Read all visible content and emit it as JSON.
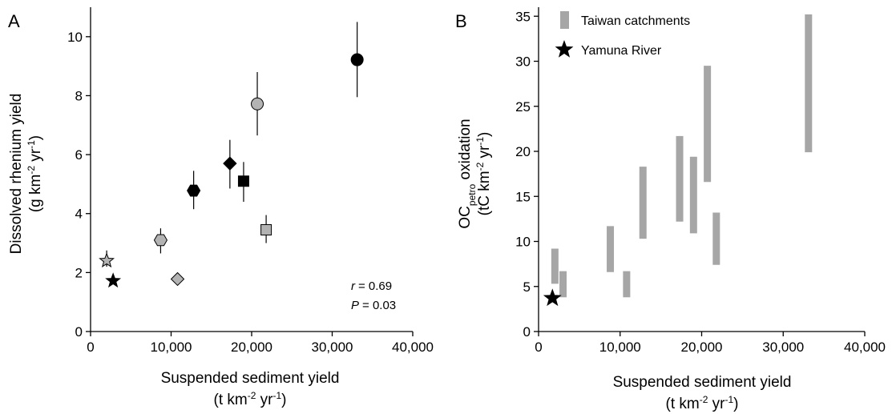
{
  "chart_data": [
    {
      "type": "scatter",
      "panel_label": "A",
      "xlabel": "Suspended sediment yield",
      "xlabel_units": {
        "pre": "(t km",
        "sup1": "-2",
        "mid": " yr",
        "sup2": "-1",
        "post": ")"
      },
      "ylabel": "Dissolved rhenium yield",
      "ylabel_units": {
        "pre": "(g km",
        "sup1": "-2",
        "mid": " yr",
        "sup2": "-1",
        "post": ")"
      },
      "xlim": [
        0,
        40000
      ],
      "ylim": [
        0,
        11
      ],
      "xticks": [
        0,
        10000,
        20000,
        30000,
        40000
      ],
      "xtick_labels": [
        "0",
        "10,000",
        "20,000",
        "30,000",
        "40,000"
      ],
      "yticks": [
        0,
        2,
        4,
        6,
        8,
        10
      ],
      "ytick_labels": [
        "0",
        "2",
        "4",
        "6",
        "8",
        "10"
      ],
      "grid": false,
      "stats": {
        "r_label": "r",
        "r_value": "= 0.69",
        "p_label": "P",
        "p_value": "= 0.03"
      },
      "points": [
        {
          "x": 2000,
          "y": 2.4,
          "err_low": 2.2,
          "err_high": 2.75,
          "marker": "star",
          "color": "#b3b3b3"
        },
        {
          "x": 2800,
          "y": 1.72,
          "err_low": 1.72,
          "err_high": 1.72,
          "marker": "star",
          "color": "#000000"
        },
        {
          "x": 8700,
          "y": 3.1,
          "err_low": 2.65,
          "err_high": 3.5,
          "marker": "hexagon",
          "color": "#b3b3b3"
        },
        {
          "x": 10800,
          "y": 1.78,
          "err_low": 1.78,
          "err_high": 1.78,
          "marker": "diamond",
          "color": "#b3b3b3"
        },
        {
          "x": 12800,
          "y": 4.78,
          "err_low": 4.15,
          "err_high": 5.45,
          "marker": "hexagon",
          "color": "#000000"
        },
        {
          "x": 17300,
          "y": 5.7,
          "err_low": 4.85,
          "err_high": 6.5,
          "marker": "diamond",
          "color": "#000000"
        },
        {
          "x": 19000,
          "y": 5.1,
          "err_low": 4.4,
          "err_high": 5.75,
          "marker": "square",
          "color": "#000000"
        },
        {
          "x": 20700,
          "y": 7.72,
          "err_low": 6.65,
          "err_high": 8.8,
          "marker": "circle",
          "color": "#b3b3b3"
        },
        {
          "x": 21800,
          "y": 3.45,
          "err_low": 3.0,
          "err_high": 3.95,
          "marker": "square",
          "color": "#b3b3b3"
        },
        {
          "x": 33100,
          "y": 9.22,
          "err_low": 7.95,
          "err_high": 10.5,
          "marker": "circle",
          "color": "#000000"
        }
      ]
    },
    {
      "type": "range-bar",
      "panel_label": "B",
      "xlabel": "Suspended sediment yield",
      "xlabel_units": {
        "pre": "(t km",
        "sup1": "-2",
        "mid": " yr",
        "sup2": "-1",
        "post": ")"
      },
      "ylabel_main": "OC",
      "ylabel_sub": "petro",
      "ylabel_rest": " oxidation",
      "ylabel_units": {
        "pre": "(tC km",
        "sup1": "-2",
        "mid": " yr",
        "sup2": "-1",
        "post": ")"
      },
      "xlim": [
        0,
        40000
      ],
      "ylim": [
        0,
        36
      ],
      "xticks": [
        0,
        10000,
        20000,
        30000,
        40000
      ],
      "xtick_labels": [
        "0",
        "10,000",
        "20,000",
        "30,000",
        "40,000"
      ],
      "yticks": [
        0,
        5,
        10,
        15,
        20,
        25,
        30,
        35
      ],
      "ytick_labels": [
        "0",
        "5",
        "10",
        "15",
        "20",
        "25",
        "30",
        "35"
      ],
      "grid": false,
      "legend": [
        {
          "label": "Taiwan catchments",
          "marker": "bar",
          "color": "#a6a6a6"
        },
        {
          "label": "Yamuna River",
          "marker": "star",
          "color": "#000000"
        }
      ],
      "legend_position": "top-left",
      "bar_color": "#a6a6a6",
      "taiwan_ranges": [
        {
          "x": 2000,
          "low": 5.3,
          "high": 9.2
        },
        {
          "x": 3000,
          "low": 3.8,
          "high": 6.7
        },
        {
          "x": 8800,
          "low": 6.6,
          "high": 11.7
        },
        {
          "x": 10800,
          "low": 3.8,
          "high": 6.7
        },
        {
          "x": 12800,
          "low": 10.3,
          "high": 18.3
        },
        {
          "x": 17300,
          "low": 12.2,
          "high": 21.7
        },
        {
          "x": 19000,
          "low": 10.9,
          "high": 19.4
        },
        {
          "x": 20700,
          "low": 16.6,
          "high": 29.5
        },
        {
          "x": 21800,
          "low": 7.4,
          "high": 13.2
        },
        {
          "x": 33100,
          "low": 19.9,
          "high": 35.2
        }
      ],
      "yamuna_point": {
        "x": 1700,
        "y": 3.7,
        "marker": "star",
        "color": "#000000"
      }
    }
  ]
}
